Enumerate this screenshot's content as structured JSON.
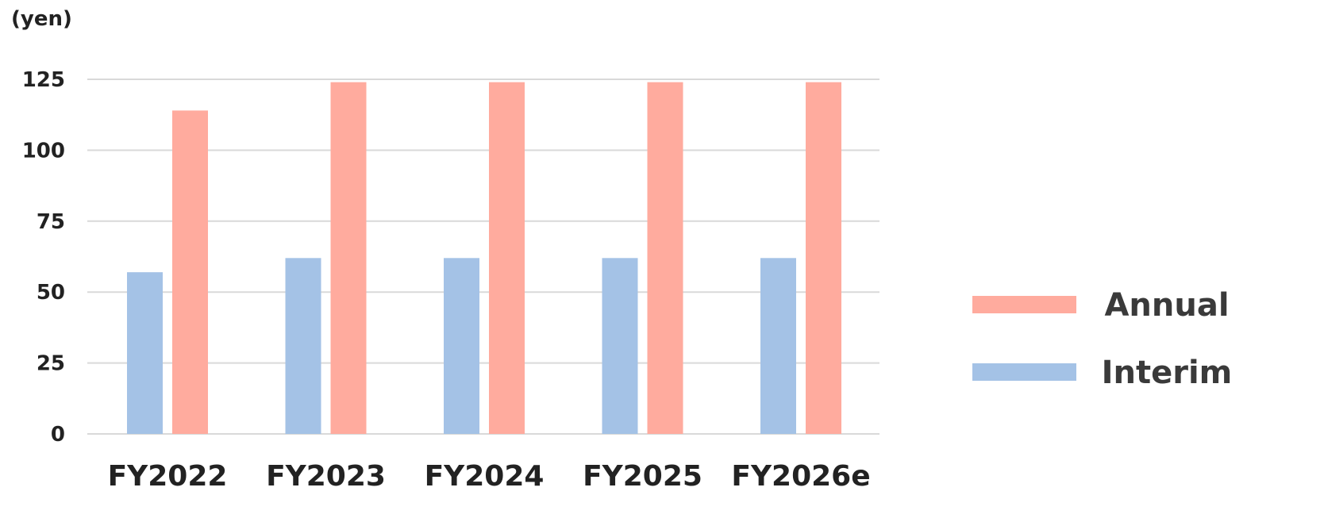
{
  "chart_data": {
    "type": "bar",
    "unit_label": "(yen)",
    "categories": [
      "FY2022",
      "FY2023",
      "FY2024",
      "FY2025",
      "FY2026e"
    ],
    "series": [
      {
        "name": "Interim",
        "values": [
          57,
          62,
          62,
          62,
          62
        ],
        "color": "#a4c2e6"
      },
      {
        "name": "Annual",
        "values": [
          114,
          124,
          124,
          124,
          124
        ],
        "color": "#ffab9e"
      }
    ],
    "ylim": [
      0,
      125
    ],
    "yticks": [
      0,
      25,
      50,
      75,
      100,
      125
    ],
    "grid": true,
    "legend": {
      "placement": "right",
      "entries": [
        {
          "name": "Annual",
          "color": "#ffab9e"
        },
        {
          "name": "Interim",
          "color": "#a4c2e6"
        }
      ]
    }
  }
}
